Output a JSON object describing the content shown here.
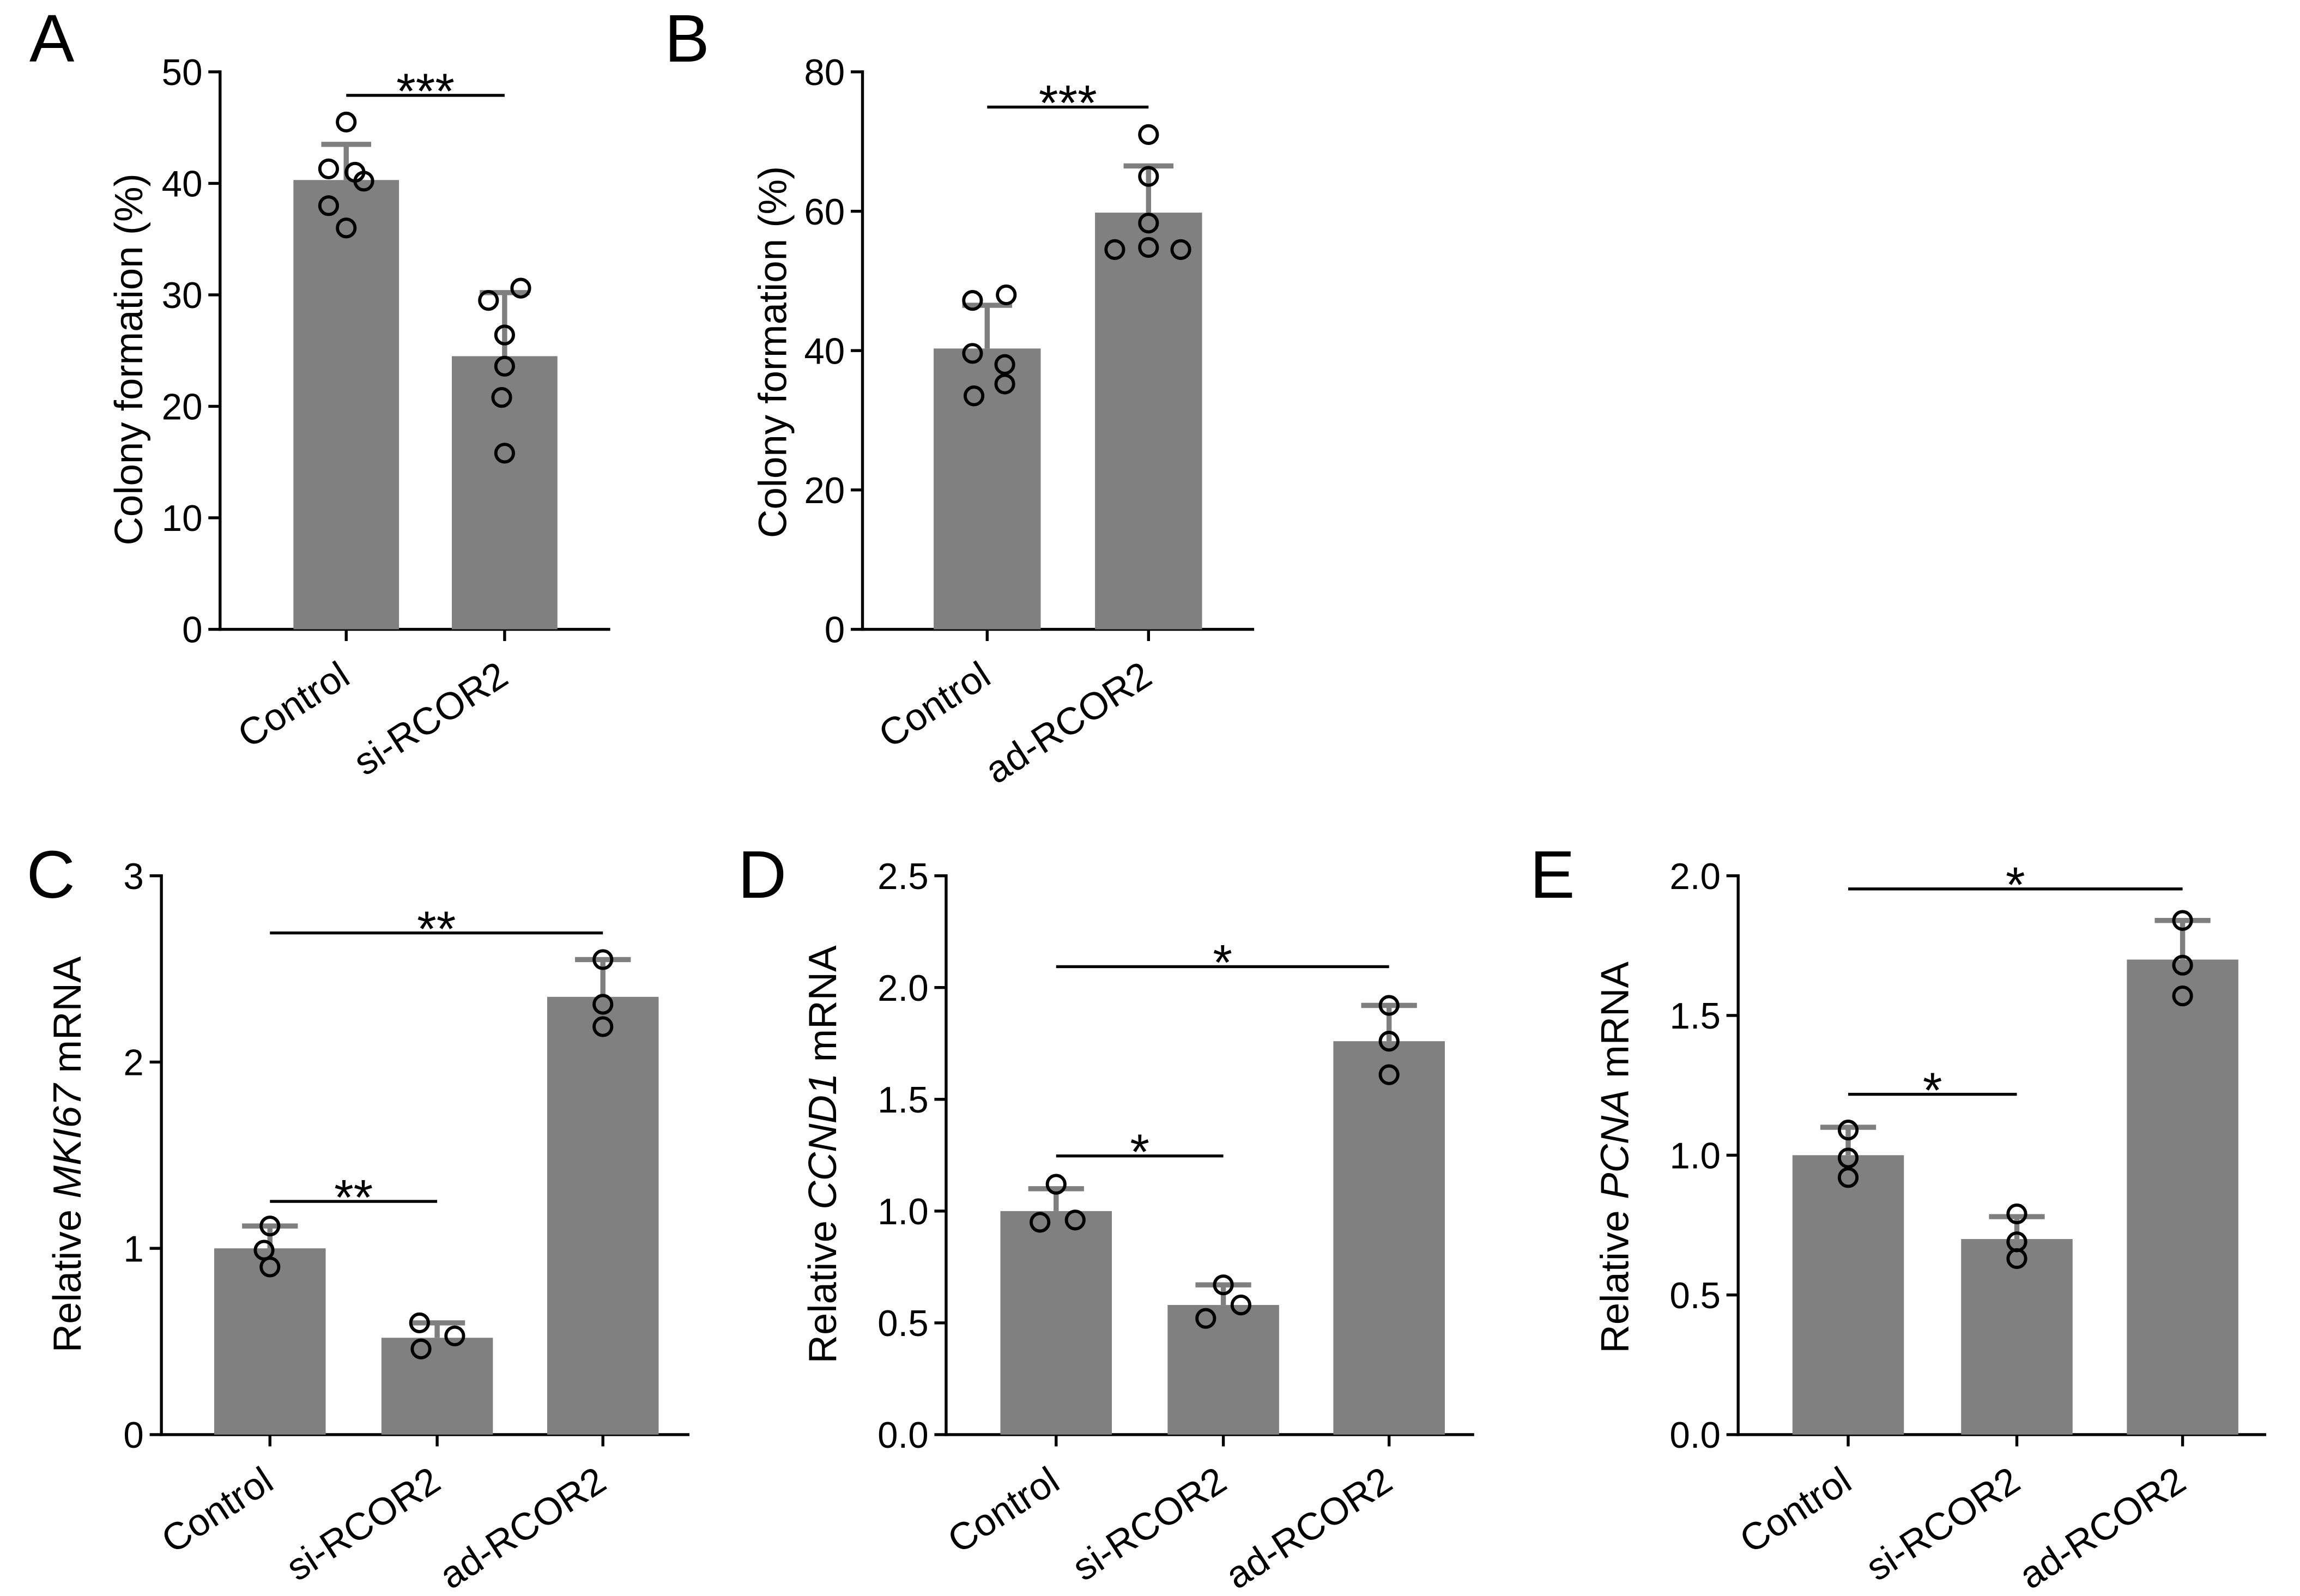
{
  "colors": {
    "bar": "#808080",
    "error_bar": "#7f7f7f",
    "point": "#000000",
    "axis": "#000000"
  },
  "chart_data": [
    {
      "panel": "A",
      "type": "bar",
      "title": "",
      "xlabel": "",
      "ylabel_parts": [
        {
          "text": "Colony formation (%)",
          "italic": false
        }
      ],
      "categories": [
        "Control",
        "si-RCOR2"
      ],
      "values": [
        40.3,
        24.5
      ],
      "error_sd": [
        3.2,
        5.7
      ],
      "points": [
        [
          45.5,
          41.3,
          41.0,
          40.2,
          38.0,
          36.0
        ],
        [
          30.6,
          29.5,
          26.4,
          23.6,
          20.8,
          15.8
        ]
      ],
      "ylim": [
        0,
        50
      ],
      "yticks": [
        "0",
        "10",
        "20",
        "30",
        "40",
        "50"
      ],
      "significance": [
        {
          "from": 0,
          "to": 1,
          "label": "***"
        }
      ]
    },
    {
      "panel": "B",
      "type": "bar",
      "title": "",
      "xlabel": "",
      "ylabel_parts": [
        {
          "text": "Colony formation (%)",
          "italic": false
        }
      ],
      "categories": [
        "Control",
        "ad-RCOR2"
      ],
      "values": [
        40.3,
        59.8
      ],
      "error_sd": [
        6.2,
        6.7
      ],
      "points": [
        [
          47.2,
          48.0,
          39.6,
          38.0,
          33.5,
          35.2
        ],
        [
          71.0,
          65.0,
          58.3,
          54.5,
          54.8,
          54.5
        ]
      ],
      "ylim": [
        0,
        80
      ],
      "yticks": [
        "0",
        "20",
        "40",
        "60",
        "80"
      ],
      "significance": [
        {
          "from": 0,
          "to": 1,
          "label": "***"
        }
      ]
    },
    {
      "panel": "C",
      "type": "bar",
      "title": "",
      "xlabel": "",
      "ylabel_parts": [
        {
          "text": "Relative",
          "italic": false
        },
        {
          "text": "MKI67",
          "italic": true
        },
        {
          "text": "mRNA",
          "italic": false
        }
      ],
      "categories": [
        "Control",
        "si-RCOR2",
        "ad-RCOR2"
      ],
      "values": [
        1.0,
        0.52,
        2.35
      ],
      "error_sd": [
        0.12,
        0.08,
        0.2
      ],
      "points": [
        [
          1.12,
          0.99,
          0.9
        ],
        [
          0.6,
          0.46,
          0.53
        ],
        [
          2.55,
          2.31,
          2.19
        ]
      ],
      "ylim": [
        0,
        3
      ],
      "yticks": [
        "0",
        "1",
        "2",
        "3"
      ],
      "significance": [
        {
          "from": 0,
          "to": 1,
          "label": "**"
        },
        {
          "from": 0,
          "to": 2,
          "label": "**"
        }
      ]
    },
    {
      "panel": "D",
      "type": "bar",
      "title": "",
      "xlabel": "",
      "ylabel_parts": [
        {
          "text": "Relative",
          "italic": false
        },
        {
          "text": "CCND1",
          "italic": true
        },
        {
          "text": "mRNA",
          "italic": false
        }
      ],
      "categories": [
        "Control",
        "si-RCOR2",
        "ad-RCOR2"
      ],
      "values": [
        1.0,
        0.58,
        1.76
      ],
      "error_sd": [
        0.1,
        0.09,
        0.16
      ],
      "points": [
        [
          1.12,
          0.95,
          0.96
        ],
        [
          0.67,
          0.52,
          0.58
        ],
        [
          1.92,
          1.76,
          1.61
        ]
      ],
      "ylim": [
        0,
        2.5
      ],
      "yticks": [
        "0.0",
        "0.5",
        "1.0",
        "1.5",
        "2.0",
        "2.5"
      ],
      "significance": [
        {
          "from": 0,
          "to": 1,
          "label": "*"
        },
        {
          "from": 0,
          "to": 2,
          "label": "*"
        }
      ]
    },
    {
      "panel": "E",
      "type": "bar",
      "title": "",
      "xlabel": "",
      "ylabel_parts": [
        {
          "text": "Relative",
          "italic": false
        },
        {
          "text": "PCNA",
          "italic": true
        },
        {
          "text": "mRNA",
          "italic": false
        }
      ],
      "categories": [
        "Control",
        "si-RCOR2",
        "ad-RCOR2"
      ],
      "values": [
        1.0,
        0.7,
        1.7
      ],
      "error_sd": [
        0.1,
        0.08,
        0.14
      ],
      "points": [
        [
          1.09,
          0.99,
          0.92
        ],
        [
          0.79,
          0.69,
          0.63
        ],
        [
          1.84,
          1.68,
          1.57
        ]
      ],
      "ylim": [
        0,
        2.0
      ],
      "yticks": [
        "0.0",
        "0.5",
        "1.0",
        "1.5",
        "2.0"
      ],
      "significance": [
        {
          "from": 0,
          "to": 1,
          "label": "*"
        },
        {
          "from": 0,
          "to": 2,
          "label": "*"
        }
      ]
    }
  ]
}
